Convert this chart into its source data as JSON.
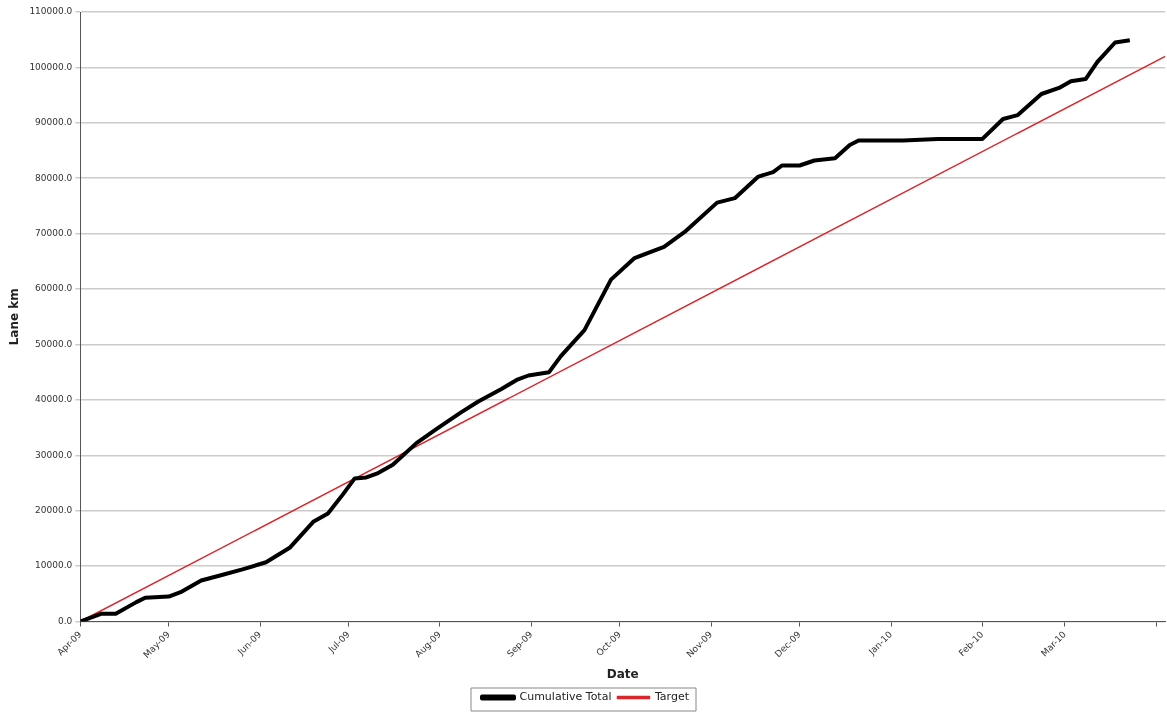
{
  "chart_data": {
    "type": "line",
    "xlabel": "Date",
    "ylabel": "Lane km",
    "xlim": [
      "2009-04-01",
      "2010-04-04"
    ],
    "ylim": [
      0,
      110000
    ],
    "xticks": [
      {
        "value": "2009-04-01",
        "label": "Apr-09"
      },
      {
        "value": "2009-05-01",
        "label": "May-09"
      },
      {
        "value": "2009-06-01",
        "label": "Jun-09"
      },
      {
        "value": "2009-07-01",
        "label": "Jul-09"
      },
      {
        "value": "2009-08-01",
        "label": "Aug-09"
      },
      {
        "value": "2009-09-01",
        "label": "Sep-09"
      },
      {
        "value": "2009-10-01",
        "label": "Oct-09"
      },
      {
        "value": "2009-11-01",
        "label": "Nov-09"
      },
      {
        "value": "2009-12-01",
        "label": "Dec-09"
      },
      {
        "value": "2010-01-01",
        "label": "Jan-10"
      },
      {
        "value": "2010-02-01",
        "label": "Feb-10"
      },
      {
        "value": "2010-03-01",
        "label": "Mar-10"
      },
      {
        "value": "2010-04-01",
        "label": null
      }
    ],
    "yticks": [
      {
        "value": 0,
        "label": "0.0"
      },
      {
        "value": 10000,
        "label": "10000.0"
      },
      {
        "value": 20000,
        "label": "20000.0"
      },
      {
        "value": 30000,
        "label": "30000.0"
      },
      {
        "value": 40000,
        "label": "40000.0"
      },
      {
        "value": 50000,
        "label": "50000.0"
      },
      {
        "value": 60000,
        "label": "60000.0"
      },
      {
        "value": 70000,
        "label": "70000.0"
      },
      {
        "value": 80000,
        "label": "80000.0"
      },
      {
        "value": 90000,
        "label": "90000.0"
      },
      {
        "value": 100000,
        "label": "100000.0"
      },
      {
        "value": 110000,
        "label": "110000.0"
      }
    ],
    "grid": "y",
    "legend": "bottom",
    "marker": "none",
    "line_style": "solid",
    "series": [
      {
        "name": "Cumulative Total",
        "color": "#000000",
        "x": [
          "2009-04-01",
          "2009-04-08",
          "2009-04-13",
          "2009-04-20",
          "2009-04-23",
          "2009-05-01",
          "2009-05-05",
          "2009-05-12",
          "2009-05-19",
          "2009-05-26",
          "2009-06-03",
          "2009-06-11",
          "2009-06-19",
          "2009-06-24",
          "2009-06-29",
          "2009-07-03",
          "2009-07-07",
          "2009-07-11",
          "2009-07-16",
          "2009-07-24",
          "2009-07-31",
          "2009-08-08",
          "2009-08-14",
          "2009-08-22",
          "2009-08-27",
          "2009-08-31",
          "2009-09-07",
          "2009-09-11",
          "2009-09-19",
          "2009-09-28",
          "2009-10-06",
          "2009-10-16",
          "2009-10-23",
          "2009-11-03",
          "2009-11-09",
          "2009-11-17",
          "2009-11-22",
          "2009-11-25",
          "2009-12-01",
          "2009-12-06",
          "2009-12-13",
          "2009-12-18",
          "2009-12-21",
          "2010-01-05",
          "2010-01-17",
          "2010-02-01",
          "2010-02-08",
          "2010-02-13",
          "2010-02-21",
          "2010-02-27",
          "2010-03-03",
          "2010-03-08",
          "2010-03-12",
          "2010-03-18",
          "2010-03-23"
        ],
        "values": [
          0,
          1400,
          1400,
          3500,
          4300,
          4500,
          5300,
          7400,
          8400,
          9400,
          10700,
          13300,
          18000,
          19500,
          22900,
          25800,
          26000,
          26800,
          28300,
          32200,
          34800,
          37700,
          39700,
          42000,
          43600,
          44400,
          45000,
          47900,
          52600,
          61700,
          65600,
          67600,
          70300,
          75600,
          76400,
          80300,
          81100,
          82300,
          82300,
          83200,
          83600,
          86000,
          86800,
          86800,
          87100,
          87100,
          90700,
          91400,
          95200,
          96300,
          97500,
          97900,
          101000,
          104500,
          104900
        ]
      },
      {
        "name": "Target",
        "color": "#d9262b",
        "x": [
          "2009-04-01",
          "2010-04-04"
        ],
        "values": [
          0,
          102000
        ]
      }
    ]
  }
}
